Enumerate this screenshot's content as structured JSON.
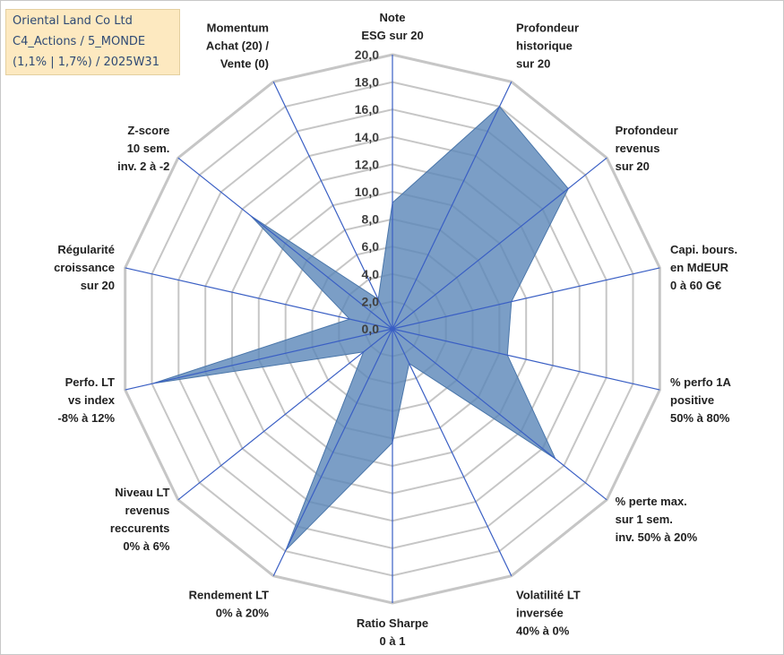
{
  "title_box": {
    "lines": [
      "Oriental Land Co Ltd",
      "C4_Actions / 5_MONDE",
      "(1,1% | 1,7%) / 2025W31"
    ]
  },
  "chart_data": {
    "type": "radar",
    "title": "",
    "rmin": 0,
    "rmax": 20,
    "grid": true,
    "tick_labels": [
      "0,0",
      "2,0",
      "4,0",
      "6,0",
      "8,0",
      "10,0",
      "12,0",
      "14,0",
      "16,0",
      "18,0",
      "20,0"
    ],
    "categories": [
      [
        "Note",
        "ESG sur 20"
      ],
      [
        "Profondeur",
        "historique",
        "sur 20"
      ],
      [
        "Profondeur",
        "revenus",
        "sur 20"
      ],
      [
        "Capi. bours.",
        "en MdEUR",
        "0 à 60 G€"
      ],
      [
        "% perfo 1A",
        "positive",
        "50% à 80%"
      ],
      [
        "% perte max.",
        "sur 1 sem.",
        "inv. 50% à 20%"
      ],
      [
        "Volatilité LT",
        "inversée",
        "40% à 0%"
      ],
      [
        "Ratio Sharpe",
        "0 à 1"
      ],
      [
        "Rendement LT",
        "0% à 20%"
      ],
      [
        "Niveau LT",
        "revenus",
        "reccurents",
        "0% à 6%"
      ],
      [
        "Perfo. LT",
        "vs index",
        "-8% à 12%"
      ],
      [
        "Régularité",
        "croissance",
        "sur 20"
      ],
      [
        "Z-score",
        "10 sem.",
        "inv. 2 à -2"
      ],
      [
        "Momentum",
        "Achat (20) /",
        "Vente (0)"
      ]
    ],
    "values": [
      9.2,
      18.0,
      16.4,
      8.9,
      8.6,
      15.2,
      2.8,
      8.3,
      17.9,
      2.7,
      17.9,
      3.2,
      13.2,
      2.4
    ],
    "colors": {
      "fill": "#5a86b8",
      "fill_opacity": 0.8,
      "stroke": "#4a76aa",
      "grid": "#c6c6c6",
      "spokes": "#3a5fc4"
    }
  }
}
